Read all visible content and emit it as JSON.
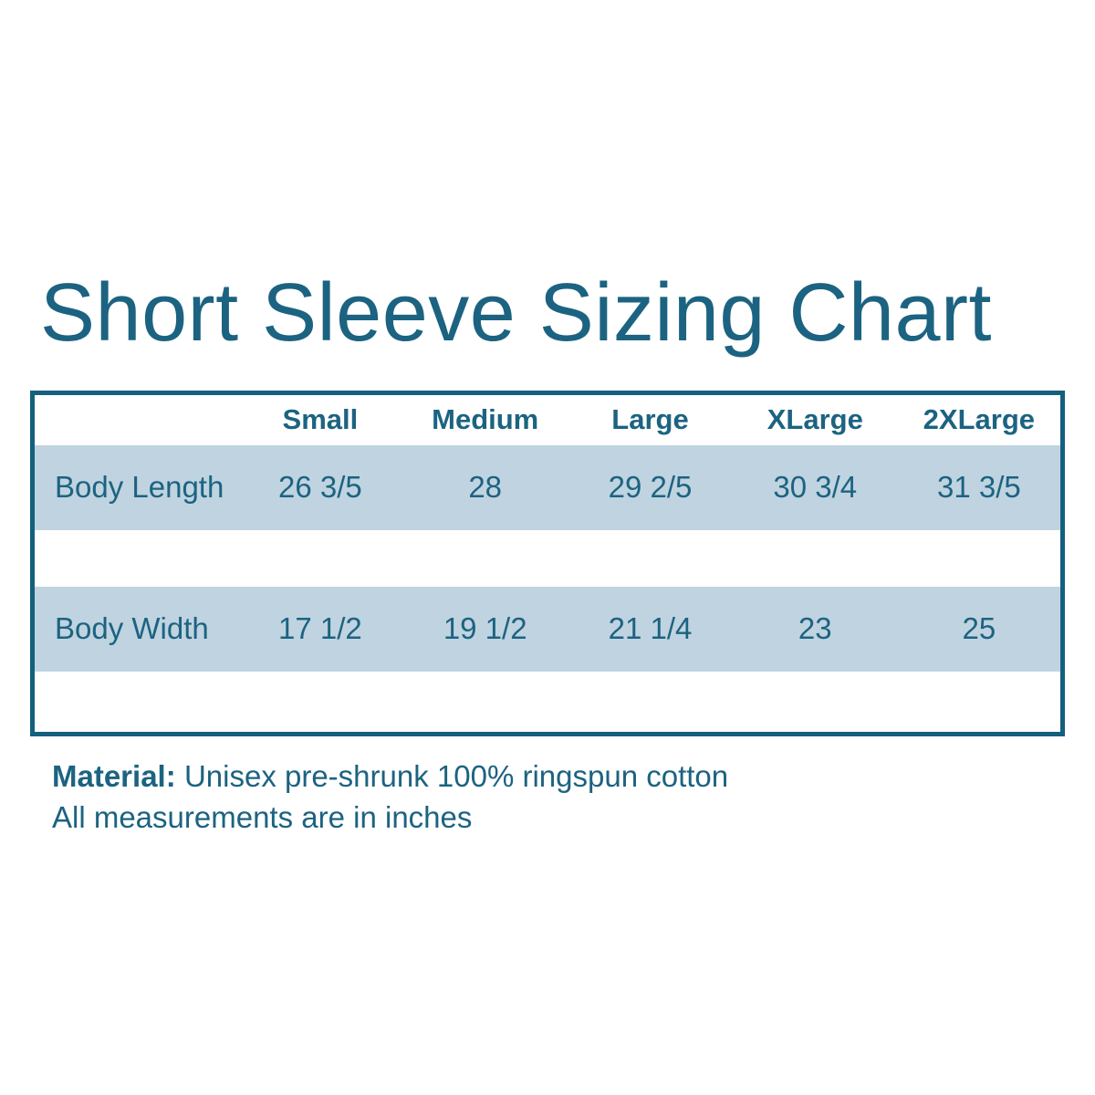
{
  "title": "Short Sleeve Sizing Chart",
  "footer": {
    "material_label": "Material:",
    "material_value": "Unisex pre-shrunk 100% ringspun cotton",
    "note": "All measurements are in inches"
  },
  "colors": {
    "accent_teal_text": "#1c6381",
    "table_border_teal": "#155f7e",
    "row_fill_blue": "#c0d3e0",
    "background": "#ffffff"
  },
  "chart_data": {
    "type": "table",
    "title": "Short Sleeve Sizing Chart",
    "columns": [
      "Small",
      "Medium",
      "Large",
      "XLarge",
      "2XLarge"
    ],
    "rows": [
      {
        "label": "Body Length",
        "values": [
          "26 3/5",
          "28",
          "29 2/5",
          "30 3/4",
          "31 3/5"
        ]
      },
      {
        "label": "Body Width",
        "values": [
          "17 1/2",
          "19 1/2",
          "21 1/4",
          "23",
          "25"
        ]
      }
    ],
    "units": "inches",
    "notes": [
      "Material: Unisex pre-shrunk 100% ringspun cotton",
      "All measurements are in inches"
    ]
  }
}
